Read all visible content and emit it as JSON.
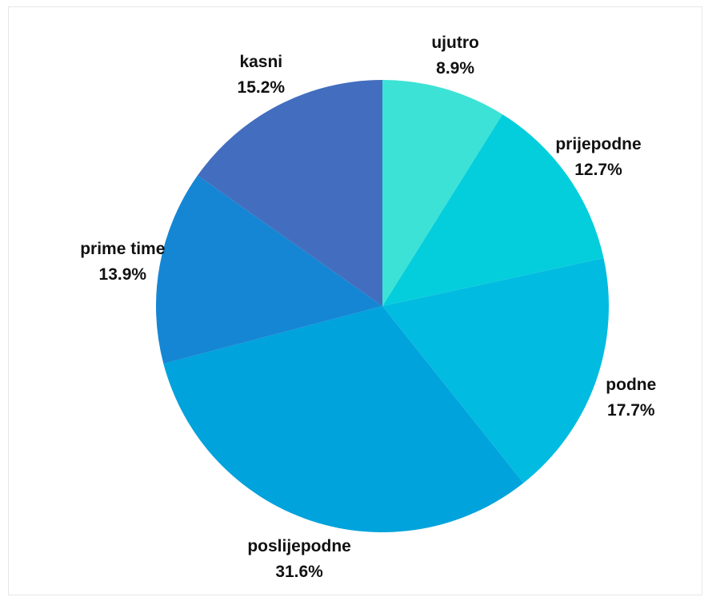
{
  "chart_data": {
    "type": "pie",
    "title": "",
    "slices": [
      {
        "label": "ujutro",
        "value": 8.9,
        "percent_label": "8.9%",
        "color": "#3de2d6"
      },
      {
        "label": "prijepodne",
        "value": 12.7,
        "percent_label": "12.7%",
        "color": "#05cedc"
      },
      {
        "label": "podne",
        "value": 17.7,
        "percent_label": "17.7%",
        "color": "#02bbe0"
      },
      {
        "label": "poslijepodne",
        "value": 31.6,
        "percent_label": "31.6%",
        "color": "#00a3dc"
      },
      {
        "label": "prime time",
        "value": 13.9,
        "percent_label": "13.9%",
        "color": "#1586d4"
      },
      {
        "label": "kasni",
        "value": 15.2,
        "percent_label": "15.2%",
        "color": "#436ebf"
      }
    ],
    "start_angle": "12 o'clock",
    "direction": "clockwise",
    "legend": "none"
  }
}
